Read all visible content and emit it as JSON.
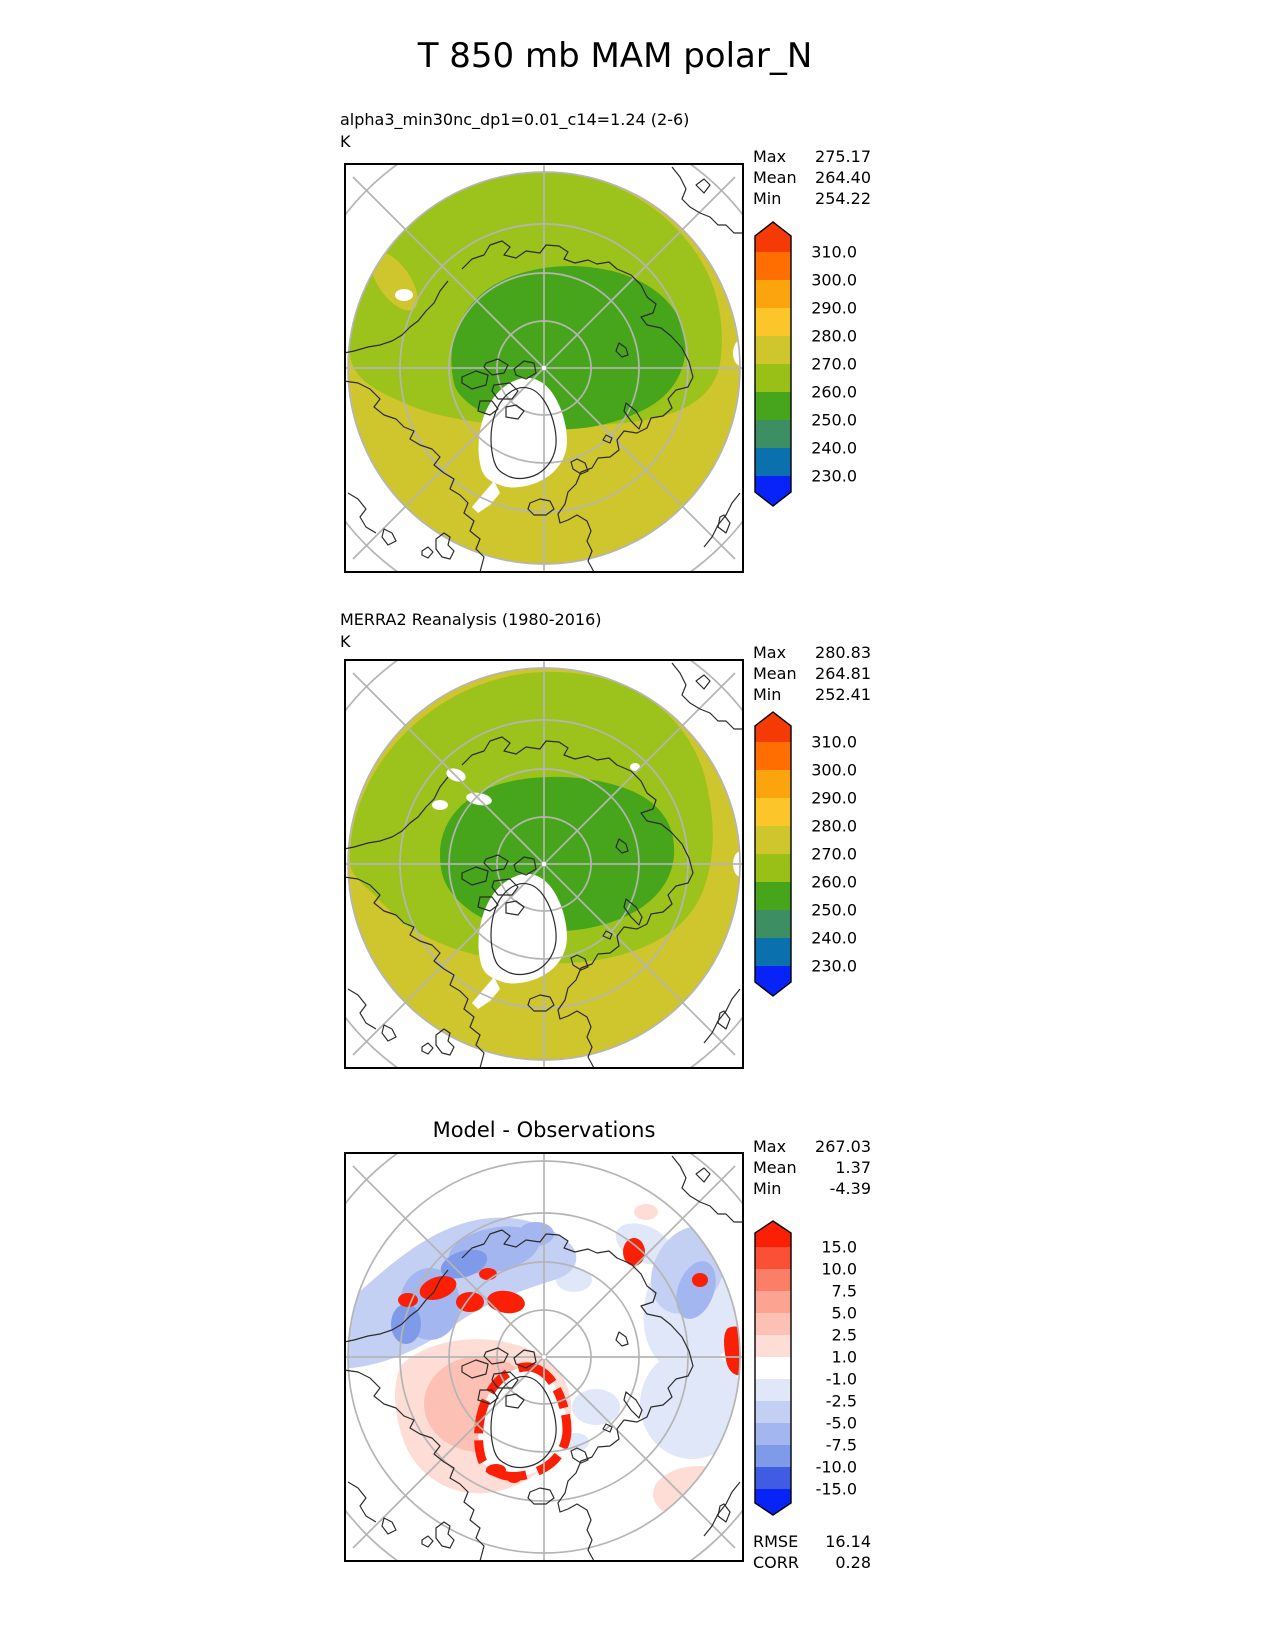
{
  "chart_data": {
    "type": "heatmap",
    "subtype": "filled-contour north-polar-stereographic maps",
    "figure_title": "T 850 mb MAM polar_N",
    "variable": "T",
    "level": "850 mb",
    "season": "MAM",
    "region": "polar_N",
    "graticule": "latitude circles 80N/70N/60N/50N, meridians every 45 deg",
    "panels": [
      {
        "id": "model",
        "title": "alpha3_min30nc_dp1=0.01_c14=1.24 (2-6)",
        "units": "K",
        "stats": [
          {
            "label": "Max",
            "value": "275.17"
          },
          {
            "label": "Mean",
            "value": "264.40"
          },
          {
            "label": "Min",
            "value": "254.22"
          }
        ],
        "colorbar": {
          "extend": "both",
          "ticks": [
            "310.0",
            "300.0",
            "290.0",
            "280.0",
            "270.0",
            "260.0",
            "250.0",
            "240.0",
            "230.0"
          ],
          "tick_values": [
            310,
            300,
            290,
            280,
            270,
            260,
            250,
            240,
            230
          ],
          "colors": [
            "#f53a05",
            "#ff6e00",
            "#fba40d",
            "#fcc62a",
            "#cfc52d",
            "#98c016",
            "#46a51a",
            "#3e8e63",
            "#0b70ae",
            "#0723fa"
          ]
        },
        "map_regions": [
          {
            "band": "270-280 K",
            "color": "#cfc52d",
            "where": "outer ring, south edges of domain"
          },
          {
            "band": "260-270 K",
            "color": "#9cc31c",
            "where": "most of domain"
          },
          {
            "band": "250-260 K",
            "color": "#46a51a",
            "where": "central Arctic"
          },
          {
            "band": "white region",
            "color": "#ffffff",
            "where": "Greenland"
          }
        ]
      },
      {
        "id": "obs",
        "title": "MERRA2 Reanalysis (1980-2016)",
        "units": "K",
        "stats": [
          {
            "label": "Max",
            "value": "280.83"
          },
          {
            "label": "Mean",
            "value": "264.81"
          },
          {
            "label": "Min",
            "value": "252.41"
          }
        ],
        "colorbar": {
          "extend": "both",
          "ticks": [
            "310.0",
            "300.0",
            "290.0",
            "280.0",
            "270.0",
            "260.0",
            "250.0",
            "240.0",
            "230.0"
          ],
          "tick_values": [
            310,
            300,
            290,
            280,
            270,
            260,
            250,
            240,
            230
          ],
          "colors": [
            "#f53a05",
            "#ff6e00",
            "#fba40d",
            "#fcc62a",
            "#cfc52d",
            "#98c016",
            "#46a51a",
            "#3e8e63",
            "#0b70ae",
            "#0723fa"
          ]
        },
        "map_regions": [
          {
            "band": "270-280 K",
            "color": "#cfc52d",
            "where": "outer ring, thicker than model"
          },
          {
            "band": "260-270 K",
            "color": "#9cc31c",
            "where": "mid-latitude ring"
          },
          {
            "band": "250-260 K",
            "color": "#46a51a",
            "where": "central Arctic oval"
          },
          {
            "band": "white region",
            "color": "#ffffff",
            "where": "Greenland and small Bering patches"
          }
        ]
      },
      {
        "id": "diff",
        "title": "Model - Observations",
        "units": "",
        "stats": [
          {
            "label": "Max",
            "value": "267.03"
          },
          {
            "label": "Mean",
            "value": "1.37"
          },
          {
            "label": "Min",
            "value": "-4.39"
          }
        ],
        "colorbar": {
          "extend": "both",
          "ticks": [
            "15.0",
            "10.0",
            "7.5",
            "5.0",
            "2.5",
            "1.0",
            "-1.0",
            "-2.5",
            "-5.0",
            "-7.5",
            "-10.0",
            "-15.0"
          ],
          "tick_values": [
            15,
            10,
            7.5,
            5,
            2.5,
            1,
            -1,
            -2.5,
            -5,
            -7.5,
            -10,
            -15
          ],
          "colors": [
            "#fb1f05",
            "#fb5036",
            "#fb7f66",
            "#fca391",
            "#fcc1b4",
            "#fdddd5",
            "#ffffff",
            "#dfe7f8",
            "#c3d0f4",
            "#a3b6ef",
            "#7f9ae9",
            "#3f5ce2",
            "#0823f5"
          ]
        },
        "map_regions": [
          {
            "band": "-1 to 1",
            "color": "#ffffff",
            "where": "most of domain"
          },
          {
            "band": "-2.5 to -10",
            "color": "#c3d0f4",
            "where": "band from Bering Sea across North Pacific sector and patches near right edge"
          },
          {
            "band": "1 to 5",
            "color": "#fcc1b4",
            "where": "Canadian Arctic and around Greenland"
          },
          {
            "band": "> 15",
            "color": "#fb1f05",
            "where": "blobs over Alaska/Bering, Siberia, right edge, and ring around Greenland coast"
          }
        ],
        "metrics": [
          {
            "label": "RMSE",
            "value": "16.14"
          },
          {
            "label": "CORR",
            "value": "0.28"
          }
        ]
      }
    ]
  },
  "palette": {
    "olive": "#cfc52d",
    "yellow_green": "#9cc31c",
    "green": "#46a51a",
    "diff_blue_light": "#dfe7f8",
    "diff_blue_band": "#c3d0f4",
    "diff_blue_mid": "#a3b6ef",
    "diff_blue_deep": "#7f9ae9",
    "diff_pink_light": "#fdddd5",
    "diff_pink": "#fcc1b4",
    "diff_red": "#fb1f05",
    "coast": "#2b2b2b",
    "graticule": "#b5b5b5"
  }
}
